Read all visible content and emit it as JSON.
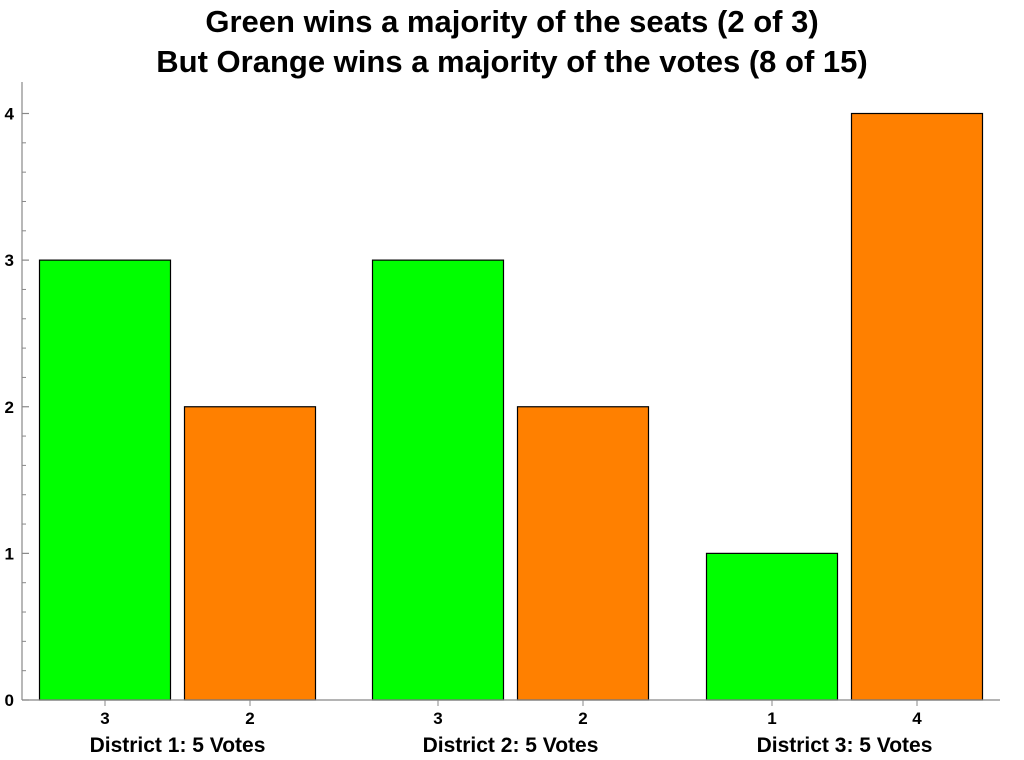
{
  "chart_data": {
    "type": "bar",
    "title_lines": [
      "Green wins a majority of the seats (2 of 3)",
      "But Orange wins a majority of the votes (8 of 15)"
    ],
    "xlabel": "",
    "ylabel": "",
    "ylim": [
      0,
      4
    ],
    "y_ticks": [
      "0",
      "1",
      "2",
      "3",
      "4"
    ],
    "grid": false,
    "legend": "none",
    "groups": [
      {
        "label": "District 1: 5 Votes",
        "bars": [
          {
            "series": "Green",
            "value": 3,
            "label": "3"
          },
          {
            "series": "Orange",
            "value": 2,
            "label": "2"
          }
        ]
      },
      {
        "label": "District 2: 5 Votes",
        "bars": [
          {
            "series": "Green",
            "value": 3,
            "label": "3"
          },
          {
            "series": "Orange",
            "value": 2,
            "label": "2"
          }
        ]
      },
      {
        "label": "District 3: 5 Votes",
        "bars": [
          {
            "series": "Green",
            "value": 1,
            "label": "1"
          },
          {
            "series": "Orange",
            "value": 4,
            "label": "4"
          }
        ]
      }
    ],
    "colors": {
      "Green": "#00ff00",
      "Orange": "#ff8000",
      "bar_stroke": "#000000",
      "axis": "#888888"
    }
  }
}
